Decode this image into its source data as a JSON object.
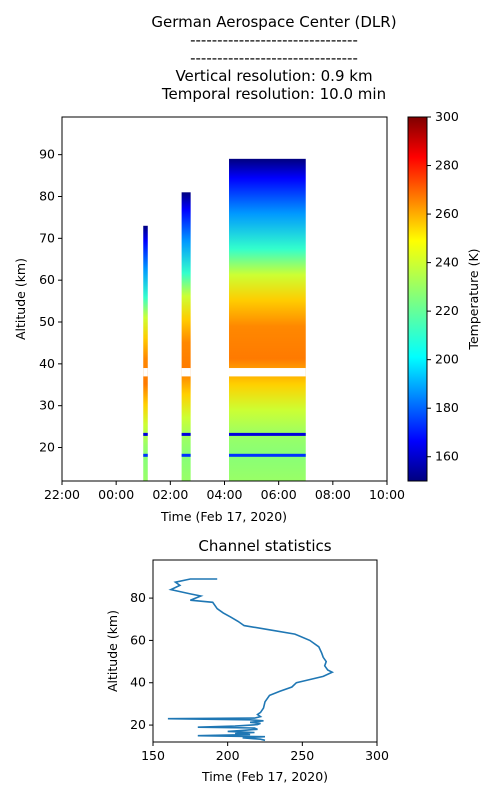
{
  "titles": [
    "German Aerospace Center (DLR)",
    "-------------------------------",
    "-------------------------------",
    "Vertical resolution: 0.9 km",
    "Temporal resolution: 10.0 min"
  ],
  "chart_data": [
    {
      "type": "heatmap",
      "xlabel": "Time (Feb 17, 2020)",
      "ylabel": "Altitude (km)",
      "x_ticks": [
        "22:00",
        "00:00",
        "02:00",
        "04:00",
        "06:00",
        "08:00",
        "10:00"
      ],
      "y_ticks": [
        20,
        30,
        40,
        50,
        60,
        70,
        80,
        90
      ],
      "ylim": [
        12,
        99
      ],
      "colorbar": {
        "label": "Temperature (K)",
        "range": [
          150,
          300
        ],
        "ticks": [
          160,
          180,
          200,
          220,
          240,
          260,
          280,
          300
        ],
        "colormap": "jet"
      },
      "segments": [
        {
          "start": "01:00",
          "end": "01:10",
          "top_km": 73
        },
        {
          "start": "02:25",
          "end": "02:45",
          "top_km": 81
        },
        {
          "start": "04:10",
          "end": "07:00",
          "top_km": 89
        }
      ]
    },
    {
      "type": "line",
      "title": "Channel statistics",
      "xlabel": "Time (Feb 17, 2020)",
      "ylabel": "Altitude (km)",
      "x_ticks": [
        150,
        200,
        250,
        300
      ],
      "y_ticks": [
        20,
        40,
        60,
        80
      ],
      "xlim": [
        150,
        300
      ],
      "ylim": [
        12,
        98
      ],
      "color": "#1f77b4",
      "points": [
        [
          193,
          89
        ],
        [
          175,
          89
        ],
        [
          165,
          87.5
        ],
        [
          168,
          86
        ],
        [
          162,
          84
        ],
        [
          175,
          82
        ],
        [
          182,
          81
        ],
        [
          175,
          79
        ],
        [
          190,
          78
        ],
        [
          193,
          75
        ],
        [
          197,
          73
        ],
        [
          202,
          71
        ],
        [
          207,
          69
        ],
        [
          211,
          67
        ],
        [
          228,
          65
        ],
        [
          245,
          63
        ],
        [
          255,
          60
        ],
        [
          261,
          57
        ],
        [
          263,
          54
        ],
        [
          264,
          52
        ],
        [
          266,
          50
        ],
        [
          265,
          48
        ],
        [
          267,
          46
        ],
        [
          270,
          45
        ],
        [
          264,
          43
        ],
        [
          252,
          41
        ],
        [
          246,
          40
        ],
        [
          243,
          38
        ],
        [
          235,
          36
        ],
        [
          228,
          34
        ],
        [
          225,
          31
        ],
        [
          224,
          28
        ],
        [
          222,
          26
        ],
        [
          220,
          25
        ],
        [
          222,
          24
        ],
        [
          218,
          23.3
        ],
        [
          160,
          23
        ],
        [
          215,
          22.5
        ],
        [
          224,
          22
        ],
        [
          215,
          21.3
        ],
        [
          222,
          20.8
        ],
        [
          220,
          20.2
        ],
        [
          205,
          19.5
        ],
        [
          180,
          19
        ],
        [
          218,
          18.6
        ],
        [
          220,
          18
        ],
        [
          210,
          17.5
        ],
        [
          200,
          17
        ],
        [
          218,
          16.5
        ],
        [
          205,
          16
        ],
        [
          215,
          15.5
        ],
        [
          180,
          15
        ],
        [
          225,
          14.5
        ],
        [
          210,
          14
        ],
        [
          222,
          13.3
        ],
        [
          225,
          12.8
        ]
      ]
    }
  ]
}
